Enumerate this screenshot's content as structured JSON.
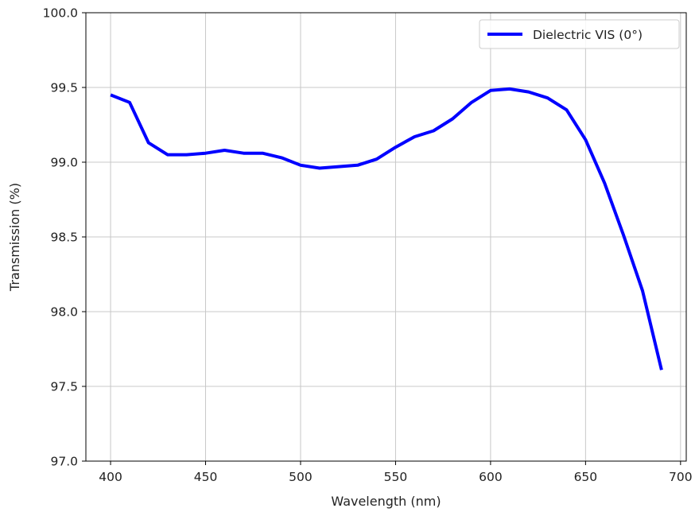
{
  "chart_data": {
    "type": "line",
    "title": "",
    "xlabel": "Wavelength (nm)",
    "ylabel": "Transmission (%)",
    "xlim": [
      387,
      703
    ],
    "ylim": [
      97.0,
      100.0
    ],
    "xticks": [
      400,
      450,
      500,
      550,
      600,
      650,
      700
    ],
    "xtick_labels": [
      "400",
      "450",
      "500",
      "550",
      "600",
      "650",
      "700"
    ],
    "yticks": [
      97.0,
      97.5,
      98.0,
      98.5,
      99.0,
      99.5,
      100.0
    ],
    "ytick_labels": [
      "97.0",
      "97.5",
      "98.0",
      "98.5",
      "99.0",
      "99.5",
      "100.0"
    ],
    "grid": true,
    "legend_position": "top-right",
    "series": [
      {
        "name": "Dielectric VIS (0°)",
        "color": "#0000ff",
        "x": [
          400,
          410,
          420,
          430,
          440,
          450,
          460,
          470,
          480,
          490,
          500,
          510,
          520,
          530,
          540,
          550,
          560,
          570,
          580,
          590,
          600,
          610,
          620,
          630,
          640,
          650,
          660,
          670,
          680,
          690
        ],
        "y": [
          99.45,
          99.4,
          99.13,
          99.05,
          99.05,
          99.06,
          99.08,
          99.06,
          99.06,
          99.03,
          98.98,
          98.96,
          98.97,
          98.98,
          99.02,
          99.1,
          99.17,
          99.21,
          99.29,
          99.4,
          99.48,
          99.49,
          99.47,
          99.43,
          99.35,
          99.15,
          98.86,
          98.51,
          98.14,
          97.61
        ]
      }
    ]
  }
}
